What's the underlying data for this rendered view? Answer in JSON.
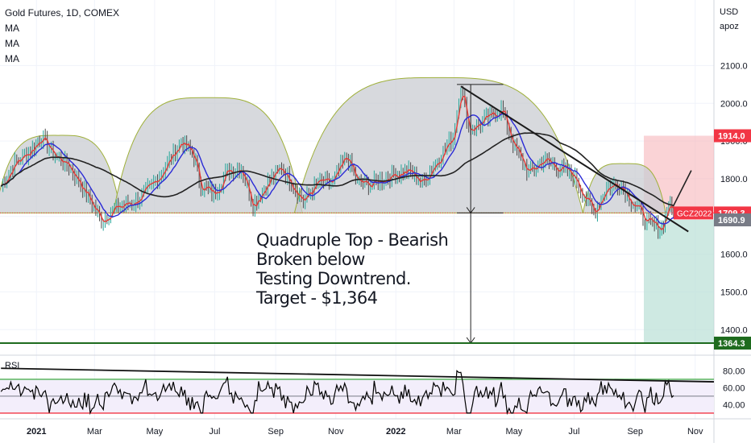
{
  "header": {
    "title": "Gold Futures, 1D, COMEX",
    "indicators": [
      "MA",
      "MA",
      "MA"
    ],
    "currency": "USD",
    "unit": "apoz"
  },
  "annotation": [
    "Quadruple Top - Bearish",
    "Broken below",
    "Testing Downtrend.",
    "Target - $1,364"
  ],
  "colors": {
    "price": "#e53935",
    "ma_fast": "#2a2ad6",
    "ma_slow": "#222222",
    "dome": "#c9ccd1",
    "dome_edge": "#9fb03a",
    "stop_zone": "#f7b5bb",
    "target_zone": "#b9e0d5",
    "target_line": "#1e6b1e",
    "rsi_line": "#000000"
  },
  "chart_data": [
    {
      "type": "line",
      "title": "Gold Futures, 1D, COMEX",
      "x_ticks": [
        "2021",
        "Mar",
        "May",
        "Jul",
        "Sep",
        "Nov",
        "2022",
        "Mar",
        "May",
        "Jul",
        "Sep",
        "Nov"
      ],
      "x_range": [
        "2020-11-25",
        "2022-11-20"
      ],
      "y_ticks": [
        1400.0,
        1500.0,
        1600.0,
        1700.0,
        1800.0,
        1900.0,
        2000.0,
        2100.0
      ],
      "ylim": [
        1360,
        2150
      ],
      "price_labels": [
        {
          "text": "1914.0",
          "value": 1914.0,
          "color": "#f23645"
        },
        {
          "text": "GCZ2022",
          "value": 1709.3,
          "color": "#f23645"
        },
        {
          "text": "1709.3",
          "value": 1709.3,
          "color": "#f23645"
        },
        {
          "text": "1690.9",
          "value": 1690.9,
          "color": "#787b86"
        },
        {
          "text": "1364.3",
          "value": 1364.3,
          "color": "#1e6b1e"
        }
      ],
      "series": [
        {
          "values_key": "close",
          "x": [
            "2020-11-26",
            "2020-12-10",
            "2020-12-28",
            "2021-01-06",
            "2021-01-20",
            "2021-02-03",
            "2021-02-17",
            "2021-03-08",
            "2021-03-25",
            "2021-04-12",
            "2021-04-28",
            "2021-05-14",
            "2021-05-28",
            "2021-06-10",
            "2021-06-17",
            "2021-06-30",
            "2021-07-14",
            "2021-07-28",
            "2021-08-09",
            "2021-08-24",
            "2021-09-07",
            "2021-09-29",
            "2021-10-14",
            "2021-10-29",
            "2021-11-12",
            "2021-11-23",
            "2021-12-08",
            "2021-12-28",
            "2022-01-14",
            "2022-01-28",
            "2022-02-14",
            "2022-02-28",
            "2022-03-08",
            "2022-03-16",
            "2022-03-30",
            "2022-04-18",
            "2022-05-02",
            "2022-05-16",
            "2022-05-31",
            "2022-06-15",
            "2022-06-30",
            "2022-07-21",
            "2022-08-03",
            "2022-08-16",
            "2022-08-26",
            "2022-09-15",
            "2022-09-28",
            "2022-10-05",
            "2022-10-10"
          ],
          "values": [
            1780,
            1840,
            1880,
            1910,
            1860,
            1835,
            1775,
            1690,
            1725,
            1740,
            1780,
            1840,
            1900,
            1860,
            1780,
            1760,
            1820,
            1830,
            1730,
            1790,
            1830,
            1740,
            1790,
            1790,
            1860,
            1790,
            1785,
            1810,
            1820,
            1790,
            1855,
            1910,
            2045,
            1930,
            1950,
            1985,
            1880,
            1815,
            1850,
            1830,
            1810,
            1710,
            1775,
            1790,
            1750,
            1680,
            1670,
            1730,
            1709
          ]
        },
        {
          "name": "",
          "kind": "ma20",
          "color": "#2a2ad6"
        },
        {
          "name": "",
          "kind": "ma100",
          "color": "#222222"
        }
      ],
      "resistance_levels": [
        1914.0,
        1709.3,
        1364.3
      ],
      "downtrend_line": {
        "x": [
          "2022-03-08",
          "2022-10-25"
        ],
        "y": [
          2045,
          1660
        ]
      },
      "measured_move": {
        "from": 2050,
        "to": 1709.3,
        "projected_to": 1364.3
      }
    },
    {
      "type": "line",
      "title": "RSI",
      "y_ticks": [
        40.0,
        60.0,
        80.0
      ],
      "ylim": [
        28,
        88
      ],
      "levels": [
        30,
        50,
        70
      ],
      "trendline": {
        "x": [
          "2020-11-26",
          "2022-11-20"
        ],
        "y": [
          83,
          67
        ]
      }
    }
  ]
}
